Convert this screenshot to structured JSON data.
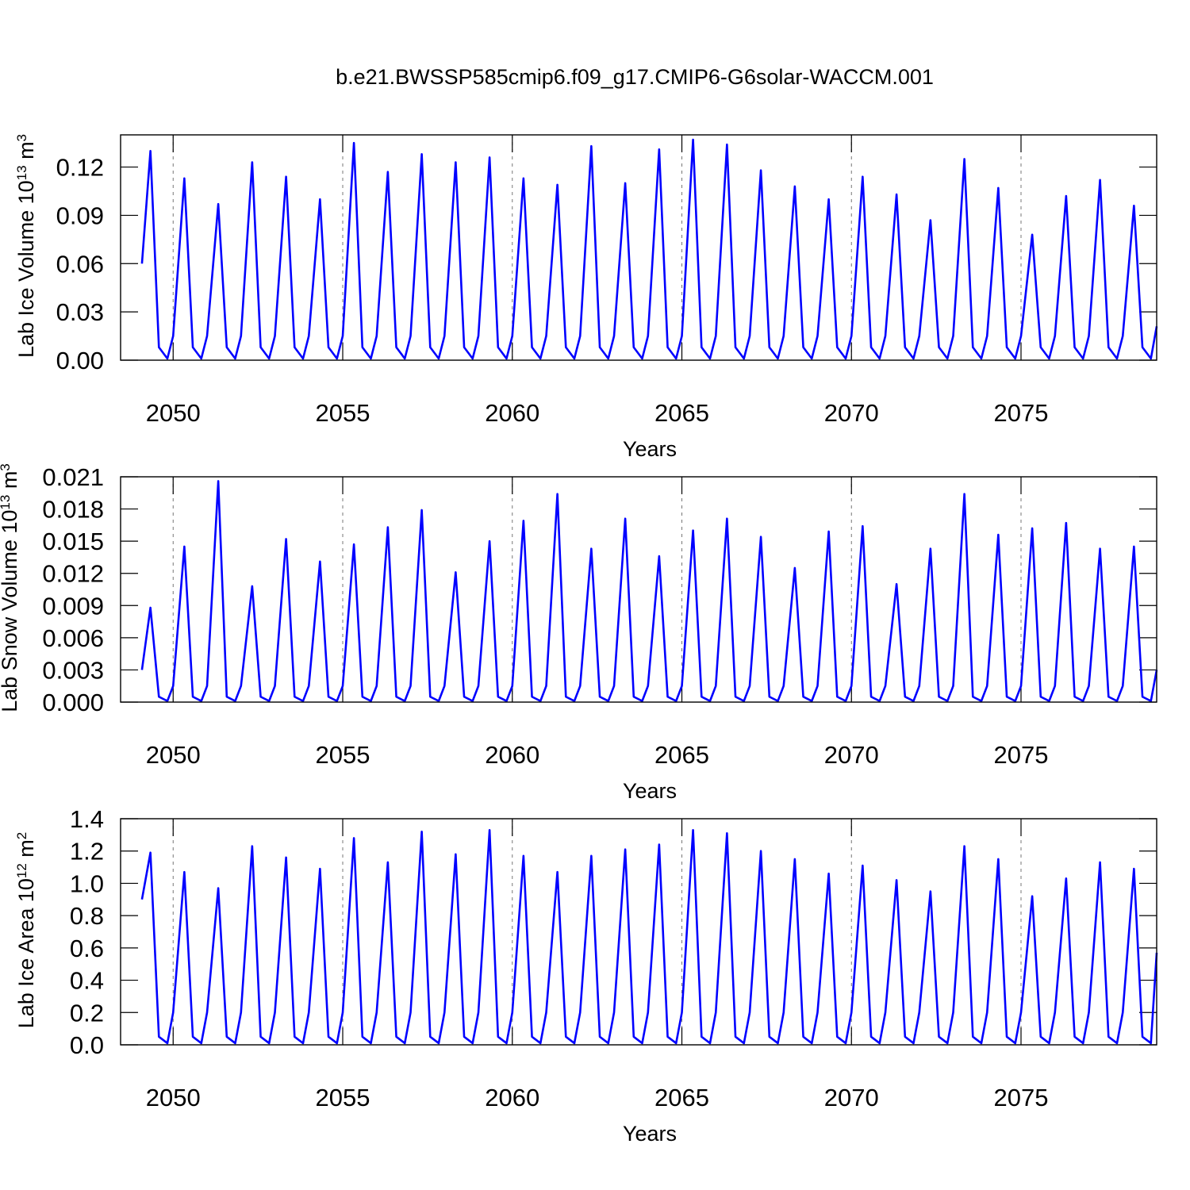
{
  "chart_data": [
    {
      "type": "line",
      "title": "b.e21.BWSSP585cmip6.f09_g17.CMIP6-G6solar-WACCM.001",
      "xlabel": "Years",
      "ylabel": [
        "Lab Ice Volume 10",
        "13",
        " m",
        "3"
      ],
      "xlim": [
        2048.45,
        2079.0
      ],
      "xticks": [
        2050,
        2055,
        2060,
        2065,
        2070,
        2075
      ],
      "ylim": [
        0,
        0.14
      ],
      "yticks": [
        {
          "value": 0,
          "label": "0.00"
        },
        0.03,
        0.06,
        0.09,
        0.12
      ],
      "grid": "x-dashed",
      "series": [
        {
          "color": "#0000ff",
          "x": [
            2049.08,
            2049.33,
            2049.58,
            2049.83,
            2050,
            2050.33,
            2050.58,
            2050.83,
            2051,
            2051.33,
            2051.58,
            2051.83,
            2052,
            2052.33,
            2052.58,
            2052.83,
            2053,
            2053.33,
            2053.58,
            2053.83,
            2054,
            2054.33,
            2054.58,
            2054.83,
            2055,
            2055.33,
            2055.58,
            2055.83,
            2056,
            2056.33,
            2056.58,
            2056.83,
            2057,
            2057.33,
            2057.58,
            2057.83,
            2058,
            2058.33,
            2058.58,
            2058.83,
            2059,
            2059.33,
            2059.58,
            2059.83,
            2060,
            2060.33,
            2060.58,
            2060.83,
            2061,
            2061.33,
            2061.58,
            2061.83,
            2062,
            2062.33,
            2062.58,
            2062.83,
            2063,
            2063.33,
            2063.58,
            2063.83,
            2064,
            2064.33,
            2064.58,
            2064.83,
            2065,
            2065.33,
            2065.58,
            2065.83,
            2066,
            2066.33,
            2066.58,
            2066.83,
            2067,
            2067.33,
            2067.58,
            2067.83,
            2068,
            2068.33,
            2068.58,
            2068.83,
            2069,
            2069.33,
            2069.58,
            2069.83,
            2070,
            2070.33,
            2070.58,
            2070.83,
            2071,
            2071.33,
            2071.58,
            2071.83,
            2072,
            2072.33,
            2072.58,
            2072.83,
            2073,
            2073.33,
            2073.58,
            2073.83,
            2074,
            2074.33,
            2074.58,
            2074.83,
            2075,
            2075.33,
            2075.58,
            2075.83,
            2076,
            2076.33,
            2076.58,
            2076.83,
            2077,
            2077.33,
            2077.58,
            2077.83,
            2078,
            2078.33,
            2078.58,
            2078.83,
            2079
          ],
          "values": [
            0.06,
            0.13,
            0.008,
            0.001,
            0.015,
            0.113,
            0.008,
            0.001,
            0.015,
            0.097,
            0.008,
            0.001,
            0.015,
            0.123,
            0.008,
            0.001,
            0.015,
            0.114,
            0.008,
            0.001,
            0.015,
            0.1,
            0.008,
            0.001,
            0.015,
            0.135,
            0.008,
            0.001,
            0.015,
            0.117,
            0.008,
            0.001,
            0.015,
            0.128,
            0.008,
            0.001,
            0.015,
            0.123,
            0.008,
            0.001,
            0.015,
            0.126,
            0.008,
            0.001,
            0.015,
            0.113,
            0.008,
            0.001,
            0.015,
            0.109,
            0.008,
            0.001,
            0.015,
            0.133,
            0.008,
            0.001,
            0.015,
            0.11,
            0.008,
            0.001,
            0.015,
            0.131,
            0.008,
            0.001,
            0.015,
            0.137,
            0.008,
            0.001,
            0.015,
            0.134,
            0.008,
            0.001,
            0.015,
            0.118,
            0.008,
            0.001,
            0.015,
            0.108,
            0.008,
            0.001,
            0.015,
            0.1,
            0.008,
            0.001,
            0.015,
            0.114,
            0.008,
            0.001,
            0.015,
            0.103,
            0.008,
            0.001,
            0.015,
            0.087,
            0.008,
            0.001,
            0.015,
            0.125,
            0.008,
            0.001,
            0.015,
            0.107,
            0.008,
            0.001,
            0.015,
            0.078,
            0.008,
            0.001,
            0.015,
            0.102,
            0.008,
            0.001,
            0.015,
            0.112,
            0.008,
            0.001,
            0.015,
            0.096,
            0.008,
            0.001,
            0.021
          ]
        }
      ]
    },
    {
      "type": "line",
      "xlabel": "Years",
      "ylabel": [
        "Lab Snow Volume 10",
        "13",
        " m",
        "3"
      ],
      "xlim": [
        2048.45,
        2079.0
      ],
      "xticks": [
        2050,
        2055,
        2060,
        2065,
        2070,
        2075
      ],
      "ylim": [
        0,
        0.021
      ],
      "yticks": [
        {
          "value": 0,
          "label": "0.000"
        },
        0.003,
        0.006,
        0.009,
        0.012,
        0.015,
        0.018,
        0.021
      ],
      "grid": "x-dashed",
      "series": [
        {
          "color": "#0000ff",
          "x": [
            2049.08,
            2049.33,
            2049.58,
            2049.83,
            2050,
            2050.33,
            2050.58,
            2050.83,
            2051,
            2051.33,
            2051.58,
            2051.83,
            2052,
            2052.33,
            2052.58,
            2052.83,
            2053,
            2053.33,
            2053.58,
            2053.83,
            2054,
            2054.33,
            2054.58,
            2054.83,
            2055,
            2055.33,
            2055.58,
            2055.83,
            2056,
            2056.33,
            2056.58,
            2056.83,
            2057,
            2057.33,
            2057.58,
            2057.83,
            2058,
            2058.33,
            2058.58,
            2058.83,
            2059,
            2059.33,
            2059.58,
            2059.83,
            2060,
            2060.33,
            2060.58,
            2060.83,
            2061,
            2061.33,
            2061.58,
            2061.83,
            2062,
            2062.33,
            2062.58,
            2062.83,
            2063,
            2063.33,
            2063.58,
            2063.83,
            2064,
            2064.33,
            2064.58,
            2064.83,
            2065,
            2065.33,
            2065.58,
            2065.83,
            2066,
            2066.33,
            2066.58,
            2066.83,
            2067,
            2067.33,
            2067.58,
            2067.83,
            2068,
            2068.33,
            2068.58,
            2068.83,
            2069,
            2069.33,
            2069.58,
            2069.83,
            2070,
            2070.33,
            2070.58,
            2070.83,
            2071,
            2071.33,
            2071.58,
            2071.83,
            2072,
            2072.33,
            2072.58,
            2072.83,
            2073,
            2073.33,
            2073.58,
            2073.83,
            2074,
            2074.33,
            2074.58,
            2074.83,
            2075,
            2075.33,
            2075.58,
            2075.83,
            2076,
            2076.33,
            2076.58,
            2076.83,
            2077,
            2077.33,
            2077.58,
            2077.83,
            2078,
            2078.33,
            2078.58,
            2078.83,
            2079
          ],
          "values": [
            0.003,
            0.0088,
            0.0005,
            0.0001,
            0.0015,
            0.0145,
            0.0005,
            0.0001,
            0.0015,
            0.0206,
            0.0005,
            0.0001,
            0.0015,
            0.0108,
            0.0005,
            0.0001,
            0.0015,
            0.0152,
            0.0005,
            0.0001,
            0.0015,
            0.0131,
            0.0005,
            0.0001,
            0.0015,
            0.0147,
            0.0005,
            0.0001,
            0.0015,
            0.0163,
            0.0005,
            0.0001,
            0.0015,
            0.0179,
            0.0005,
            0.0001,
            0.0015,
            0.0121,
            0.0005,
            0.0001,
            0.0015,
            0.015,
            0.0005,
            0.0001,
            0.0015,
            0.0169,
            0.0005,
            0.0001,
            0.0015,
            0.0194,
            0.0005,
            0.0001,
            0.0015,
            0.0143,
            0.0005,
            0.0001,
            0.0015,
            0.0171,
            0.0005,
            0.0001,
            0.0015,
            0.0136,
            0.0005,
            0.0001,
            0.0015,
            0.016,
            0.0005,
            0.0001,
            0.0015,
            0.0171,
            0.0005,
            0.0001,
            0.0015,
            0.0154,
            0.0005,
            0.0001,
            0.0015,
            0.0125,
            0.0005,
            0.0001,
            0.0015,
            0.0159,
            0.0005,
            0.0001,
            0.0015,
            0.0164,
            0.0005,
            0.0001,
            0.0015,
            0.011,
            0.0005,
            0.0001,
            0.0015,
            0.0143,
            0.0005,
            0.0001,
            0.0015,
            0.0194,
            0.0005,
            0.0001,
            0.0015,
            0.0156,
            0.0005,
            0.0001,
            0.0015,
            0.0162,
            0.0005,
            0.0001,
            0.0015,
            0.0167,
            0.0005,
            0.0001,
            0.0015,
            0.0143,
            0.0005,
            0.0001,
            0.0015,
            0.0145,
            0.0005,
            0.0001,
            0.003
          ]
        }
      ]
    },
    {
      "type": "line",
      "xlabel": "Years",
      "ylabel": [
        "Lab Ice Area 10",
        "12",
        " m",
        "2"
      ],
      "xlim": [
        2048.45,
        2079.0
      ],
      "xticks": [
        2050,
        2055,
        2060,
        2065,
        2070,
        2075
      ],
      "ylim": [
        0,
        1.4
      ],
      "yticks": [
        {
          "value": 0,
          "label": "0.0"
        },
        0.2,
        0.4,
        0.6,
        0.8,
        {
          "value": 1,
          "label": "1.0"
        },
        1.2,
        1.4
      ],
      "grid": "x-dashed",
      "series": [
        {
          "color": "#0000ff",
          "x": [
            2049.08,
            2049.33,
            2049.58,
            2049.83,
            2050,
            2050.33,
            2050.58,
            2050.83,
            2051,
            2051.33,
            2051.58,
            2051.83,
            2052,
            2052.33,
            2052.58,
            2052.83,
            2053,
            2053.33,
            2053.58,
            2053.83,
            2054,
            2054.33,
            2054.58,
            2054.83,
            2055,
            2055.33,
            2055.58,
            2055.83,
            2056,
            2056.33,
            2056.58,
            2056.83,
            2057,
            2057.33,
            2057.58,
            2057.83,
            2058,
            2058.33,
            2058.58,
            2058.83,
            2059,
            2059.33,
            2059.58,
            2059.83,
            2060,
            2060.33,
            2060.58,
            2060.83,
            2061,
            2061.33,
            2061.58,
            2061.83,
            2062,
            2062.33,
            2062.58,
            2062.83,
            2063,
            2063.33,
            2063.58,
            2063.83,
            2064,
            2064.33,
            2064.58,
            2064.83,
            2065,
            2065.33,
            2065.58,
            2065.83,
            2066,
            2066.33,
            2066.58,
            2066.83,
            2067,
            2067.33,
            2067.58,
            2067.83,
            2068,
            2068.33,
            2068.58,
            2068.83,
            2069,
            2069.33,
            2069.58,
            2069.83,
            2070,
            2070.33,
            2070.58,
            2070.83,
            2071,
            2071.33,
            2071.58,
            2071.83,
            2072,
            2072.33,
            2072.58,
            2072.83,
            2073,
            2073.33,
            2073.58,
            2073.83,
            2074,
            2074.33,
            2074.58,
            2074.83,
            2075,
            2075.33,
            2075.58,
            2075.83,
            2076,
            2076.33,
            2076.58,
            2076.83,
            2077,
            2077.33,
            2077.58,
            2077.83,
            2078,
            2078.33,
            2078.58,
            2078.83,
            2079
          ],
          "values": [
            0.9,
            1.19,
            0.05,
            0.01,
            0.2,
            1.07,
            0.05,
            0.01,
            0.2,
            0.97,
            0.05,
            0.01,
            0.2,
            1.23,
            0.05,
            0.01,
            0.2,
            1.16,
            0.05,
            0.01,
            0.2,
            1.09,
            0.05,
            0.01,
            0.2,
            1.28,
            0.05,
            0.01,
            0.2,
            1.13,
            0.05,
            0.01,
            0.2,
            1.32,
            0.05,
            0.01,
            0.2,
            1.18,
            0.05,
            0.01,
            0.2,
            1.33,
            0.05,
            0.01,
            0.2,
            1.17,
            0.05,
            0.01,
            0.2,
            1.07,
            0.05,
            0.01,
            0.2,
            1.17,
            0.05,
            0.01,
            0.2,
            1.21,
            0.05,
            0.01,
            0.2,
            1.24,
            0.05,
            0.01,
            0.2,
            1.33,
            0.05,
            0.01,
            0.2,
            1.31,
            0.05,
            0.01,
            0.2,
            1.2,
            0.05,
            0.01,
            0.2,
            1.15,
            0.05,
            0.01,
            0.2,
            1.06,
            0.05,
            0.01,
            0.2,
            1.11,
            0.05,
            0.01,
            0.2,
            1.02,
            0.05,
            0.01,
            0.2,
            0.95,
            0.05,
            0.01,
            0.2,
            1.23,
            0.05,
            0.01,
            0.2,
            1.15,
            0.05,
            0.01,
            0.2,
            0.92,
            0.05,
            0.01,
            0.2,
            1.03,
            0.05,
            0.01,
            0.2,
            1.13,
            0.05,
            0.01,
            0.2,
            1.09,
            0.05,
            0.01,
            0.57
          ]
        }
      ]
    }
  ]
}
